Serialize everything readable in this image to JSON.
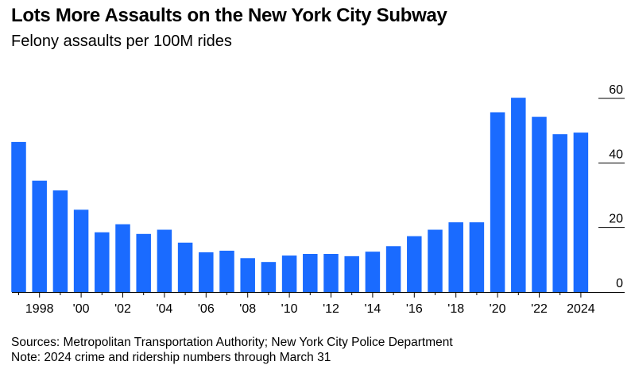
{
  "title": "Lots More Assaults on the New York City Subway",
  "subtitle": "Felony assaults per 100M rides",
  "sources": "Sources: Metropolitan Transportation Authority; New York City Police Department",
  "note": "Note: 2024 crime and ridership numbers through March 31",
  "colors": {
    "bar": "#1a6bff",
    "gridline": "#000000",
    "text": "#000000"
  },
  "chart_data": {
    "type": "bar",
    "x": [
      1997,
      1998,
      1999,
      2000,
      2001,
      2002,
      2003,
      2004,
      2005,
      2006,
      2007,
      2008,
      2009,
      2010,
      2011,
      2012,
      2013,
      2014,
      2015,
      2016,
      2017,
      2018,
      2019,
      2020,
      2021,
      2022,
      2023,
      2024
    ],
    "values": [
      46.5,
      34.5,
      31.5,
      25.5,
      18.5,
      21,
      18,
      19.3,
      15.3,
      12.3,
      12.8,
      10.5,
      9.3,
      11.3,
      11.8,
      11.8,
      11.1,
      12.5,
      14.2,
      17.3,
      19.3,
      21.6,
      21.6,
      55.7,
      60.2,
      54.3,
      48.9,
      49.4
    ],
    "x_tick_labels": [
      {
        "x": 1998,
        "label": "1998"
      },
      {
        "x": 2000,
        "label": "'00"
      },
      {
        "x": 2002,
        "label": "'02"
      },
      {
        "x": 2004,
        "label": "'04"
      },
      {
        "x": 2006,
        "label": "'06"
      },
      {
        "x": 2008,
        "label": "'08"
      },
      {
        "x": 2010,
        "label": "'10"
      },
      {
        "x": 2012,
        "label": "'12"
      },
      {
        "x": 2014,
        "label": "'14"
      },
      {
        "x": 2016,
        "label": "'16"
      },
      {
        "x": 2018,
        "label": "'18"
      },
      {
        "x": 2020,
        "label": "'20"
      },
      {
        "x": 2022,
        "label": "'22"
      },
      {
        "x": 2024,
        "label": "2024"
      }
    ],
    "y_ticks": [
      0,
      20,
      40,
      60
    ],
    "ylim": [
      0,
      60
    ],
    "y_axis_side": "right",
    "grid": true
  }
}
